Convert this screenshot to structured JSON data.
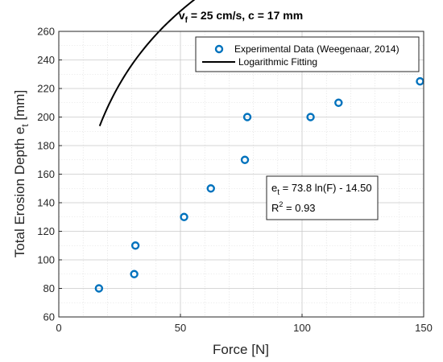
{
  "chart_data": {
    "type": "scatter",
    "title_parts": {
      "a": "v",
      "a_sub": "f",
      "b": " = 25 cm/s, c = 17 mm"
    },
    "xlabel": "Force [N]",
    "ylabel_parts": {
      "a": "Total Erosion Depth e",
      "a_sub": "t",
      "b": " [mm]"
    },
    "xlim": [
      0,
      150
    ],
    "ylim": [
      60,
      260
    ],
    "xticks": [
      0,
      50,
      100,
      150
    ],
    "yticks": [
      60,
      80,
      100,
      120,
      140,
      160,
      180,
      200,
      220,
      240,
      260
    ],
    "grid": true,
    "minor_grid": true,
    "series": [
      {
        "name": "Experimental Data (Weegenaar, 2014)",
        "kind": "marker",
        "color": "#0072BD",
        "x": [
          16.5,
          31.0,
          31.5,
          51.5,
          62.5,
          76.5,
          77.5,
          103.5,
          115.0,
          148.5
        ],
        "y": [
          80,
          90,
          110,
          130,
          150,
          170,
          200,
          200,
          210,
          225
        ]
      },
      {
        "name": "Logarithmic Fitting",
        "kind": "line",
        "color": "#000000",
        "fit": {
          "a": 73.8,
          "b": -14.5,
          "x_start": 16.8,
          "x_end": 148.5
        }
      }
    ],
    "legend_position": "top-right",
    "annotation": {
      "line1_parts": {
        "a": "e",
        "a_sub": "t",
        "b": " = 73.8 ln(F) - 14.50"
      },
      "line2_parts": {
        "a": "R",
        "a_sup": "2",
        "b": " = 0.93"
      }
    }
  }
}
